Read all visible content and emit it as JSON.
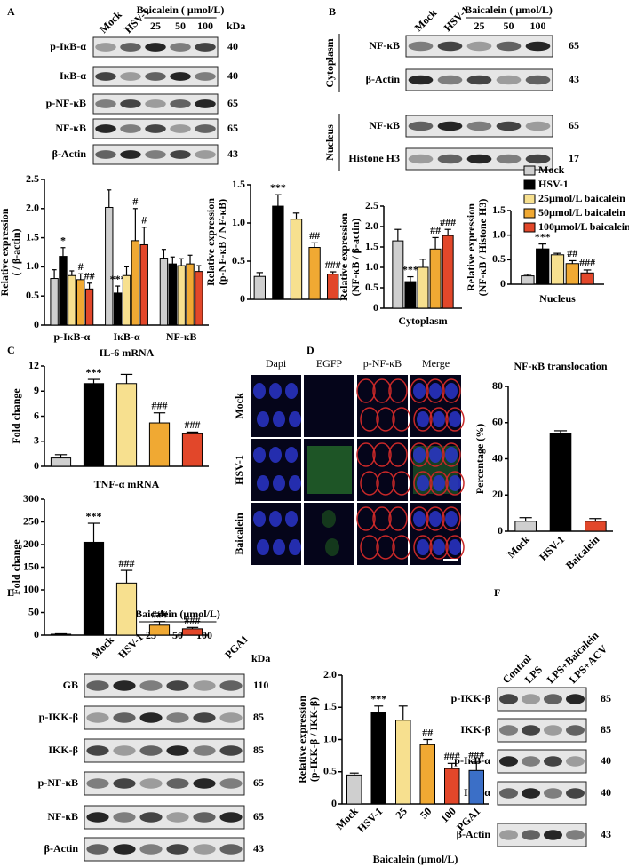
{
  "panel_labels": [
    "A",
    "B",
    "C",
    "D",
    "E",
    "F"
  ],
  "blots": [
    {
      "lanes": [
        "Mock",
        "HSV-1"
      ],
      "group": "Baicalein ( μmol/L)",
      "doses": [
        25,
        50,
        100
      ],
      "unit": "kDa",
      "rows": [
        {
          "label": "p-IκB-α",
          "kda": 40
        },
        {
          "label": "IκB-α",
          "kda": 40
        },
        {
          "label": "p-NF-κB",
          "kda": 65
        },
        {
          "label": "NF-κB",
          "kda": 65
        },
        {
          "label": "β-Actin",
          "kda": 43
        }
      ]
    },
    {
      "lanes": [
        "Mock",
        "HSV-1"
      ],
      "group": "Baicalein ( μmol/L)",
      "doses": [
        25,
        50,
        100
      ],
      "sections": [
        {
          "name": "Cytoplasm",
          "rows": [
            {
              "label": "NF-κB",
              "kda": 65
            },
            {
              "label": "β-Actin",
              "kda": 43
            }
          ]
        },
        {
          "name": "Nucleus",
          "rows": [
            {
              "label": "NF-κB",
              "kda": 65
            },
            {
              "label": "Histone H3",
              "kda": 17
            }
          ]
        }
      ]
    },
    {
      "lanes": [
        "Mock",
        "HSV-1"
      ],
      "group": "Baicalein (μmol/L)",
      "doses": [
        25,
        50,
        100
      ],
      "extra_lanes": [
        "PGA1"
      ],
      "unit": "kDa",
      "rows": [
        {
          "label": "GB",
          "kda": 110
        },
        {
          "label": "p-IKK-β",
          "kda": 85
        },
        {
          "label": "IKK-β",
          "kda": 85
        },
        {
          "label": "p-NF-κB",
          "kda": 65
        },
        {
          "label": "NF-κB",
          "kda": 65
        },
        {
          "label": "β-Actin",
          "kda": 43
        }
      ]
    },
    {
      "lanes": [
        "Control",
        "LPS",
        "LPS+Baicalein",
        "LPS+ACV"
      ],
      "rows": [
        {
          "label": "p-IKK-β",
          "kda": 85
        },
        {
          "label": "IKK-β",
          "kda": 85
        },
        {
          "label": "p-IκB-α",
          "kda": 40
        },
        {
          "label": "IκB-α",
          "kda": 40
        },
        {
          "label": "β-Actin",
          "kda": 43
        }
      ]
    }
  ],
  "microscopy": {
    "columns": [
      "Dapi",
      "EGFP",
      "p-NF-κB",
      "Merge"
    ],
    "rows": [
      "Mock",
      "HSV-1",
      "Baicalein"
    ]
  },
  "chart_data": [
    {
      "type": "bar",
      "ylabel": [
        "Relative expression",
        "( / β-actin)"
      ],
      "categories": [
        "p-IκB-α",
        "IκB-α",
        "NF-κB"
      ],
      "ylim": [
        0,
        2.5
      ],
      "yticks": [
        0,
        0.5,
        {
          "value": 1,
          "label": "1.0"
        },
        1.5,
        {
          "value": 2,
          "label": "2.0"
        },
        2.5
      ],
      "series": [
        {
          "color": "#cfcfcf",
          "values": [
            0.8,
            2.02,
            1.15
          ],
          "errors": [
            0.15,
            0.3,
            0.15
          ]
        },
        {
          "color": "#000000",
          "values": [
            1.18,
            0.55,
            1.05
          ],
          "errors": [
            0.15,
            0.12,
            0.12
          ],
          "annotations": [
            "*",
            "***",
            null
          ]
        },
        {
          "color": "#f7e08f",
          "values": [
            0.85,
            0.85,
            1.02
          ],
          "errors": [
            0.08,
            0.15,
            0.12
          ]
        },
        {
          "color": "#f0a933",
          "values": [
            0.78,
            1.45,
            1.05
          ],
          "errors": [
            0.1,
            0.55,
            0.15
          ],
          "annotations": [
            "#",
            "#",
            null
          ]
        },
        {
          "color": "#e2472a",
          "values": [
            0.62,
            1.38,
            0.92
          ],
          "errors": [
            0.1,
            0.3,
            0.1
          ],
          "annotations": [
            "##",
            "#",
            null
          ]
        }
      ]
    },
    {
      "type": "bar",
      "ylabel": [
        "Relative expression",
        "(p-NF-κB / NF-κB)"
      ],
      "ylim": [
        0,
        1.5
      ],
      "yticks": [
        0,
        0.5,
        {
          "value": 1,
          "label": "1.0"
        },
        1.5
      ],
      "values": [
        0.3,
        1.22,
        1.05,
        0.68,
        0.33
      ],
      "errors": [
        0.05,
        0.15,
        0.08,
        0.06,
        0.03
      ],
      "annotations": [
        null,
        "***",
        null,
        "##",
        "###"
      ],
      "colors": [
        "#cfcfcf",
        "#000000",
        "#f7e08f",
        "#f0a933",
        "#e2472a"
      ]
    },
    {
      "type": "bar",
      "ylabel": [
        "Relative expression",
        "(NF-κB / β-actin)"
      ],
      "categories": [
        "Cytoplasm"
      ],
      "ylim": [
        0,
        2.5
      ],
      "yticks": [
        0,
        0.5,
        {
          "value": 1,
          "label": "1.0"
        },
        1.5,
        {
          "value": 2,
          "label": "2.0"
        },
        2.5
      ],
      "series": [
        {
          "color": "#cfcfcf",
          "values": [
            1.65
          ],
          "errors": [
            0.28
          ]
        },
        {
          "color": "#000000",
          "values": [
            0.65
          ],
          "errors": [
            0.12
          ],
          "annotations": [
            "***"
          ]
        },
        {
          "color": "#f7e08f",
          "values": [
            1.0
          ],
          "errors": [
            0.2
          ]
        },
        {
          "color": "#f0a933",
          "values": [
            1.45
          ],
          "errors": [
            0.28
          ],
          "annotations": [
            "##"
          ]
        },
        {
          "color": "#e2472a",
          "values": [
            1.78
          ],
          "errors": [
            0.15
          ],
          "annotations": [
            "###"
          ]
        }
      ]
    },
    {
      "type": "bar",
      "ylabel": [
        "Relative expression",
        "(NF-κB / Histone H3)"
      ],
      "categories": [
        "Nucleus"
      ],
      "ylim": [
        0,
        1.5
      ],
      "yticks": [
        0,
        0.5,
        {
          "value": 1,
          "label": "1.0"
        },
        1.5
      ],
      "legend": "upper right",
      "series": [
        {
          "name": "Mock",
          "color": "#cfcfcf",
          "values": [
            0.17
          ],
          "errors": [
            0.03
          ]
        },
        {
          "name": "HSV-1",
          "color": "#000000",
          "values": [
            0.72
          ],
          "errors": [
            0.1
          ],
          "annotations": [
            "***"
          ]
        },
        {
          "name": "25μmol/L baicalein",
          "color": "#f7e08f",
          "values": [
            0.6
          ],
          "errors": [
            0.03
          ]
        },
        {
          "name": "50μmol/L baicalein",
          "color": "#f0a933",
          "values": [
            0.42
          ],
          "errors": [
            0.06
          ],
          "annotations": [
            "##"
          ]
        },
        {
          "name": "100μmol/L baicalein",
          "color": "#e2472a",
          "values": [
            0.23
          ],
          "errors": [
            0.06
          ],
          "annotations": [
            "###"
          ]
        }
      ]
    },
    {
      "type": "bar",
      "title": "IL-6 mRNA",
      "ylabel": [
        "Fold change"
      ],
      "ylim": [
        0,
        12
      ],
      "yticks": [
        0,
        3,
        6,
        9,
        12
      ],
      "values": [
        1.0,
        9.9,
        9.9,
        5.2,
        3.9
      ],
      "errors": [
        0.4,
        0.5,
        1.1,
        1.2,
        0.2
      ],
      "annotations": [
        null,
        "***",
        null,
        "###",
        "###"
      ],
      "colors": [
        "#cfcfcf",
        "#000000",
        "#f7e08f",
        "#f0a933",
        "#e2472a"
      ]
    },
    {
      "type": "bar",
      "title": "TNF-α mRNA",
      "ylabel": [
        "Fold change"
      ],
      "ylim": [
        0,
        300
      ],
      "yticks": [
        0,
        50,
        100,
        150,
        200,
        250,
        300
      ],
      "values": [
        2,
        205,
        115,
        22,
        14
      ],
      "errors": [
        1,
        42,
        28,
        8,
        3
      ],
      "annotations": [
        null,
        "***",
        "###",
        "###",
        "###"
      ],
      "colors": [
        "#cfcfcf",
        "#000000",
        "#f7e08f",
        "#f0a933",
        "#e2472a"
      ]
    },
    {
      "type": "bar",
      "title": "NF-κB translocation",
      "ylabel": [
        "Percentage (%)"
      ],
      "categories": [
        "Mock",
        "HSV-1",
        "Baicalein"
      ],
      "ylim": [
        0,
        80
      ],
      "yticks": [
        0,
        20,
        40,
        60,
        80
      ],
      "values": [
        5.5,
        54,
        5.5
      ],
      "errors": [
        2,
        1.5,
        1.5
      ],
      "colors": [
        "#cfcfcf",
        "#000000",
        "#e2472a"
      ]
    },
    {
      "type": "bar",
      "ylabel": [
        "Relative expression",
        "(p-IKK-β / IKK-β)"
      ],
      "xlabel": "Baicalein (μmol/L)",
      "categories": [
        "Mock",
        "HSV-1",
        "25",
        "50",
        "100",
        "PGA1"
      ],
      "ylim": [
        0,
        2.0
      ],
      "yticks": [
        0,
        0.5,
        {
          "value": 1,
          "label": "1.0"
        },
        1.5,
        {
          "value": 2,
          "label": "2.0"
        }
      ],
      "values": [
        0.45,
        1.42,
        1.3,
        0.92,
        0.55,
        0.52
      ],
      "errors": [
        0.03,
        0.1,
        0.22,
        0.08,
        0.08,
        0.13
      ],
      "annotations": [
        null,
        "***",
        null,
        "##",
        "###",
        "###"
      ],
      "colors": [
        "#cfcfcf",
        "#000000",
        "#f7e08f",
        "#f0a933",
        "#e2472a",
        "#3b6fc7"
      ]
    }
  ]
}
